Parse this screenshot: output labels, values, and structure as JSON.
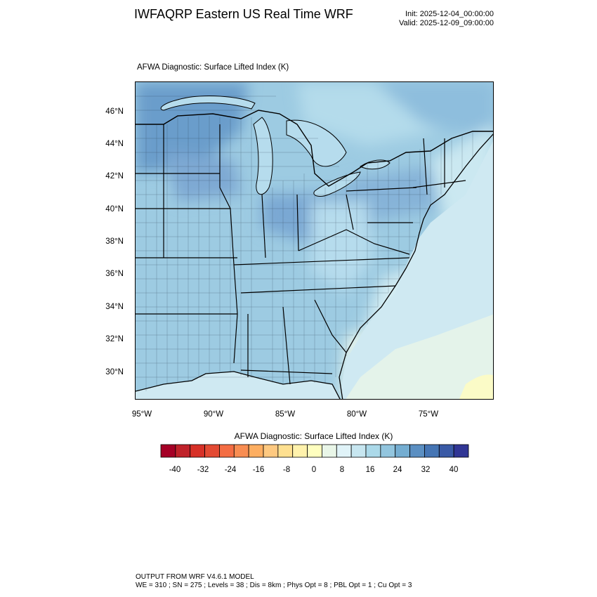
{
  "header": {
    "title": "IWFAQRP Eastern US Real Time WRF",
    "init": "Init: 2025-12-04_00:00:00",
    "valid": "Valid: 2025-12-09_09:00:00"
  },
  "panel": {
    "title": "AFWA Diagnostic: Surface Lifted Index   (K)"
  },
  "map": {
    "lat_labels": [
      "46°N",
      "44°N",
      "42°N",
      "40°N",
      "38°N",
      "36°N",
      "34°N",
      "32°N",
      "30°N"
    ],
    "lon_labels": [
      "95°W",
      "90°W",
      "85°W",
      "80°W",
      "75°W"
    ],
    "extent": {
      "lon_min": -95.5,
      "lon_max": -71.3,
      "lat_min": 28.5,
      "lat_max": 47.8
    }
  },
  "colorbar": {
    "title": "AFWA Diagnostic: Surface Lifted Index  (K)",
    "tick_labels": [
      "-40",
      "-32",
      "-24",
      "-16",
      "-8",
      "0",
      "8",
      "16",
      "24",
      "32",
      "40"
    ],
    "colors": [
      "#a50026",
      "#c0222a",
      "#d73027",
      "#e34a33",
      "#f46d43",
      "#f88d52",
      "#fdae61",
      "#fec980",
      "#fee090",
      "#fff2ac",
      "#ffffbf",
      "#e9f6e8",
      "#e0f3f8",
      "#c7e6f0",
      "#abd9e9",
      "#92c5de",
      "#74add1",
      "#5b8fc2",
      "#4575b4",
      "#3a5aa6",
      "#313695"
    ]
  },
  "footer": {
    "line1": "OUTPUT FROM WRF V4.6.1 MODEL",
    "line2": "WE = 310 ; SN = 275 ; Levels = 38 ; Dis = 8km ; Phys Opt = 8 ; PBL Opt = 1 ; Cu Opt = 3"
  }
}
